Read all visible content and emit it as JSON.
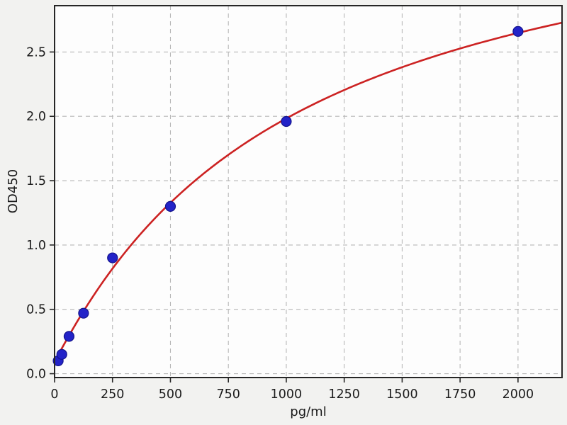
{
  "figure": {
    "kind": "ELISA standard curve plot",
    "title": ""
  },
  "colors": {
    "figure_bg": "#f2f2f0",
    "axes_bg": "#fdfdfd",
    "grid": "#b7b7b7",
    "spine": "#262626",
    "tick": "#262626",
    "text": "#1c1c1c",
    "curve": "#cc2222",
    "marker_fill": "#2323c8",
    "marker_edge": "#14148c"
  },
  "chart_data": {
    "type": "scatter",
    "title": "",
    "xlabel": "pg/ml",
    "ylabel": "OD450",
    "series": [
      {
        "name": "standard-points",
        "type": "scatter",
        "x": [
          15.6,
          31.25,
          62.5,
          125,
          250,
          500,
          1000,
          2000
        ],
        "y": [
          0.1,
          0.15,
          0.29,
          0.47,
          0.9,
          1.3,
          1.96,
          2.66
        ]
      },
      {
        "name": "4pl-fit-curve",
        "type": "line",
        "fit": {
          "model": "4PL",
          "a": 0.095,
          "b": 1.03,
          "c": 1040,
          "d": 3.95,
          "x_min": 0,
          "x_max": 2190
        }
      }
    ],
    "xlim": [
      0,
      2190
    ],
    "ylim": [
      -0.03,
      2.86
    ],
    "x_ticks": {
      "values": [
        0,
        250,
        500,
        750,
        1000,
        1250,
        1500,
        1750,
        2000
      ],
      "labels": [
        "0",
        "250",
        "500",
        "750",
        "1000",
        "1250",
        "1500",
        "1750",
        "2000"
      ]
    },
    "y_ticks": {
      "values": [
        0,
        0.5,
        1.0,
        1.5,
        2.0,
        2.5
      ],
      "labels": [
        "0.0",
        "0.5",
        "1.0",
        "1.5",
        "2.0",
        "2.5"
      ]
    },
    "grid": true,
    "grid_style": "dashed",
    "legend": null
  }
}
